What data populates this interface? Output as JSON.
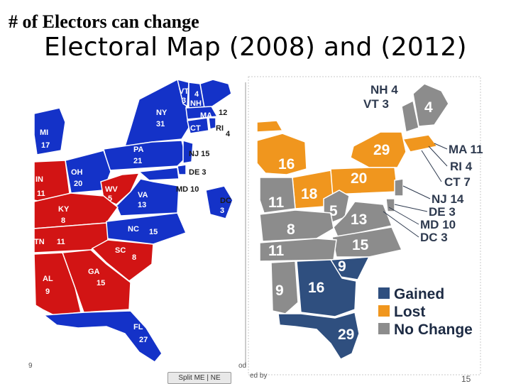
{
  "slide": {
    "subtitle": "# of Electors can change",
    "title": "Electoral Map  (2008)  and (2012)",
    "page_number": "15",
    "footer_left": "9",
    "footer_mid": "od",
    "footer_by": "ed by",
    "split_button": "Split ME | NE"
  },
  "colors": {
    "democrat_blue": "#1432c8",
    "republican_red": "#d21414",
    "gained": "#2f4f7f",
    "lost": "#f0961e",
    "no_change": "#8c8c8c"
  },
  "map_2008": {
    "states": [
      {
        "abbr": "VT",
        "ev": "3"
      },
      {
        "abbr": "NH",
        "ev": "4"
      },
      {
        "abbr": "MA",
        "ev": "12"
      },
      {
        "abbr": "RI",
        "ev": "4"
      },
      {
        "abbr": "CT",
        "ev": "7"
      },
      {
        "abbr": "NY",
        "ev": "31"
      },
      {
        "abbr": "MI",
        "ev": "17"
      },
      {
        "abbr": "PA",
        "ev": "21"
      },
      {
        "abbr": "NJ",
        "ev": "15"
      },
      {
        "abbr": "DE",
        "ev": "3"
      },
      {
        "abbr": "MD",
        "ev": "10"
      },
      {
        "abbr": "DC",
        "ev": "3"
      },
      {
        "abbr": "OH",
        "ev": "20"
      },
      {
        "abbr": "IN",
        "ev": "11"
      },
      {
        "abbr": "WV",
        "ev": "5"
      },
      {
        "abbr": "VA",
        "ev": "13"
      },
      {
        "abbr": "KY",
        "ev": "8"
      },
      {
        "abbr": "NC",
        "ev": "15"
      },
      {
        "abbr": "TN",
        "ev": "11"
      },
      {
        "abbr": "SC",
        "ev": "8"
      },
      {
        "abbr": "GA",
        "ev": "15"
      },
      {
        "abbr": "AL",
        "ev": "9"
      },
      {
        "abbr": "FL",
        "ev": "27"
      }
    ]
  },
  "map_2012": {
    "side_labels": [
      {
        "abbr": "NH",
        "ev": "4"
      },
      {
        "abbr": "VT",
        "ev": "3"
      },
      {
        "abbr": "MA",
        "ev": "11"
      },
      {
        "abbr": "RI",
        "ev": "4"
      },
      {
        "abbr": "CT",
        "ev": "7"
      },
      {
        "abbr": "NJ",
        "ev": "14"
      },
      {
        "abbr": "DE",
        "ev": "3"
      },
      {
        "abbr": "MD",
        "ev": "10"
      },
      {
        "abbr": "DC",
        "ev": "3"
      }
    ],
    "numbers": {
      "ME": "4",
      "MI": "16",
      "NY": "29",
      "PA": "20",
      "OH": "18",
      "IN": "11",
      "WV": "5",
      "VA": "13",
      "KY": "8",
      "NC": "15",
      "TN": "11",
      "SC": "9",
      "GA": "16",
      "AL": "9",
      "FL": "29"
    },
    "legend": [
      {
        "label": "Gained",
        "color": "#2f4f7f"
      },
      {
        "label": "Lost",
        "color": "#f0961e"
      },
      {
        "label": "No Change",
        "color": "#8c8c8c"
      }
    ]
  }
}
